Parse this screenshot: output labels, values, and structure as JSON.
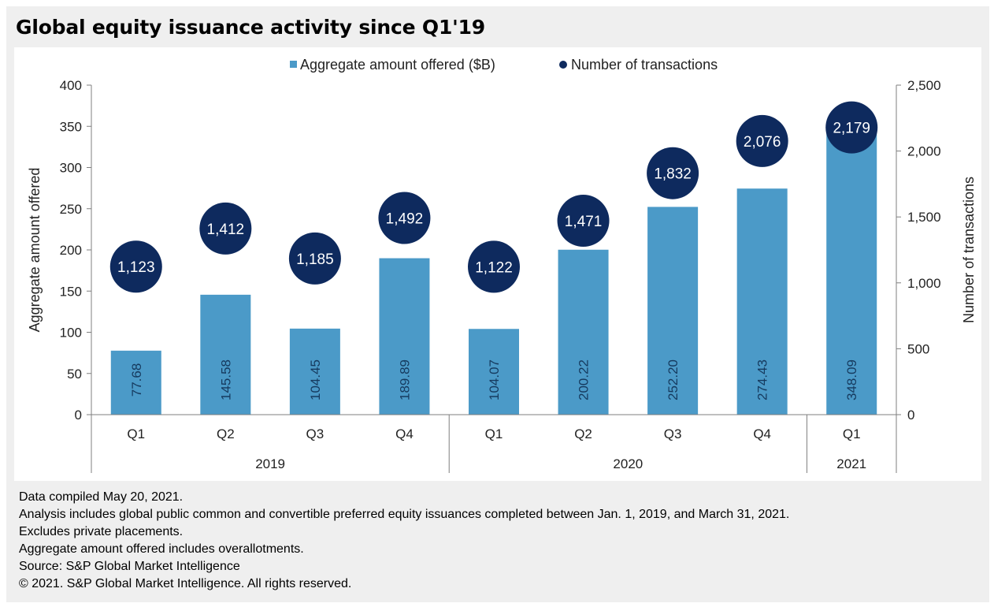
{
  "title": "Global equity issuance activity since Q1'19",
  "chart_data": {
    "type": "bar",
    "categories": [
      "Q1",
      "Q2",
      "Q3",
      "Q4",
      "Q1",
      "Q2",
      "Q3",
      "Q4",
      "Q1"
    ],
    "years": [
      {
        "label": "2019",
        "count": 4
      },
      {
        "label": "2020",
        "count": 4
      },
      {
        "label": "2021",
        "count": 1
      }
    ],
    "series": [
      {
        "name": "Aggregate amount offered ($B)",
        "kind": "bar",
        "axis": "left",
        "color": "#4b9ac8",
        "values": [
          77.68,
          145.58,
          104.45,
          189.89,
          104.07,
          200.22,
          252.2,
          274.43,
          348.09
        ],
        "labels": [
          "77.68",
          "145.58",
          "104.45",
          "189.89",
          "104.07",
          "200.22",
          "252.20",
          "274.43",
          "348.09"
        ]
      },
      {
        "name": "Number of transactions",
        "kind": "scatter",
        "axis": "right",
        "color": "#0e2a5e",
        "values": [
          1123,
          1412,
          1185,
          1492,
          1122,
          1471,
          1832,
          2076,
          2179
        ],
        "labels": [
          "1,123",
          "1,412",
          "1,185",
          "1,492",
          "1,122",
          "1,471",
          "1,832",
          "2,076",
          "2,179"
        ]
      }
    ],
    "ylabel": "Aggregate amount offered",
    "ylim": [
      0,
      400
    ],
    "yticks": [
      "0",
      "50",
      "100",
      "150",
      "200",
      "250",
      "300",
      "350",
      "400"
    ],
    "y2label": "Number of transactions",
    "y2lim": [
      0,
      2500
    ],
    "y2ticks": [
      "0",
      "500",
      "1,000",
      "1,500",
      "2,000",
      "2,500"
    ],
    "legend_position": "top-center",
    "grid": false
  },
  "notes": [
    "Data compiled May 20, 2021.",
    "Analysis includes global public common and convertible preferred equity issuances completed between Jan. 1, 2019, and March 31, 2021.",
    "Excludes private placements.",
    "Aggregate amount offered includes overallotments.",
    "Source: S&P Global Market Intelligence",
    "© 2021. S&P Global Market Intelligence. All rights reserved."
  ]
}
